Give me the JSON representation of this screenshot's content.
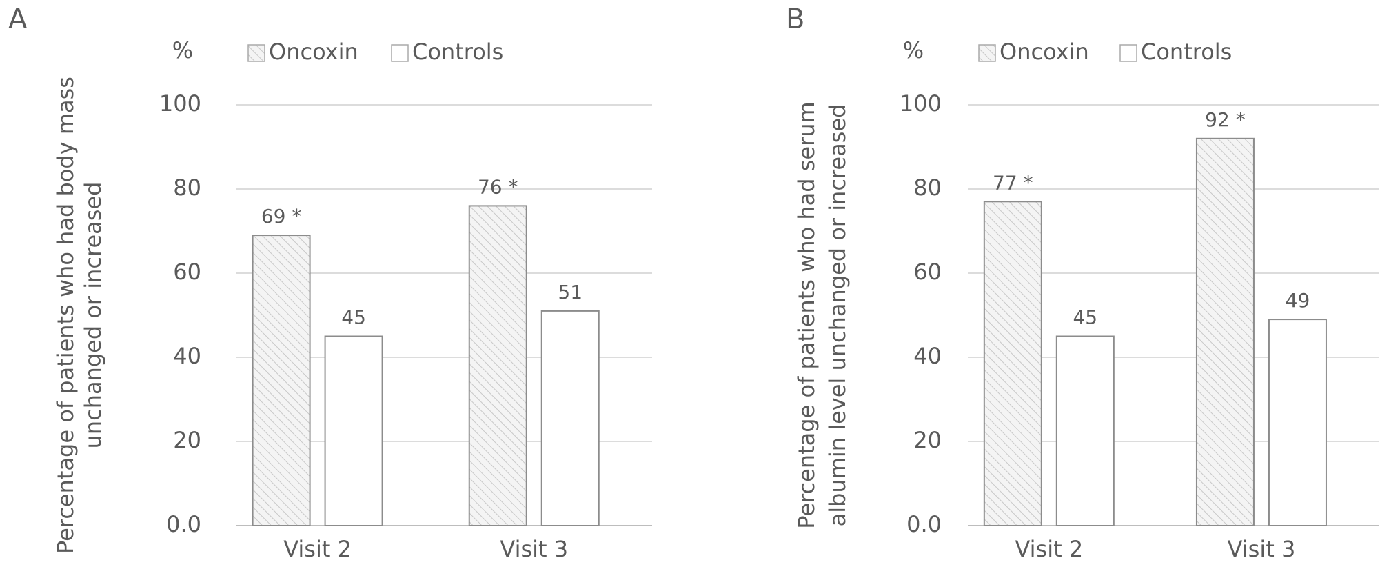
{
  "chart_data": [
    {
      "type": "bar",
      "panel": "A",
      "y_unit": "%",
      "ylabel": [
        "Percentage of patients who had body mass",
        "unchanged or increased"
      ],
      "categories": [
        "Visit 2",
        "Visit 3"
      ],
      "series": [
        {
          "name": "Oncoxin",
          "color": "#8c8c8c",
          "pattern": "hatch",
          "values": [
            69,
            76
          ],
          "value_labels": [
            "69 *",
            "76 *"
          ]
        },
        {
          "name": "Controls",
          "color": "#8c8c8c",
          "pattern": "none",
          "values": [
            45,
            51
          ]
        }
      ],
      "ylim": [
        0,
        100
      ],
      "yticks": [
        {
          "value": 0,
          "label": "0.0"
        },
        20,
        40,
        60,
        80,
        100
      ],
      "grid": true
    },
    {
      "type": "bar",
      "panel": "B",
      "y_unit": "%",
      "ylabel": [
        "Percentage of patients who had serum",
        "albumin level unchanged or increased"
      ],
      "categories": [
        "Visit 2",
        "Visit 3"
      ],
      "series": [
        {
          "name": "Oncoxin",
          "color": "#8c8c8c",
          "pattern": "hatch",
          "values": [
            77,
            92
          ],
          "value_labels": [
            "77 *",
            "92 *"
          ]
        },
        {
          "name": "Controls",
          "color": "#8c8c8c",
          "pattern": "none",
          "values": [
            45,
            49
          ]
        }
      ],
      "ylim": [
        0,
        100
      ],
      "yticks": [
        {
          "value": 0,
          "label": "0.0"
        },
        20,
        40,
        60,
        80,
        100
      ],
      "grid": true
    }
  ]
}
